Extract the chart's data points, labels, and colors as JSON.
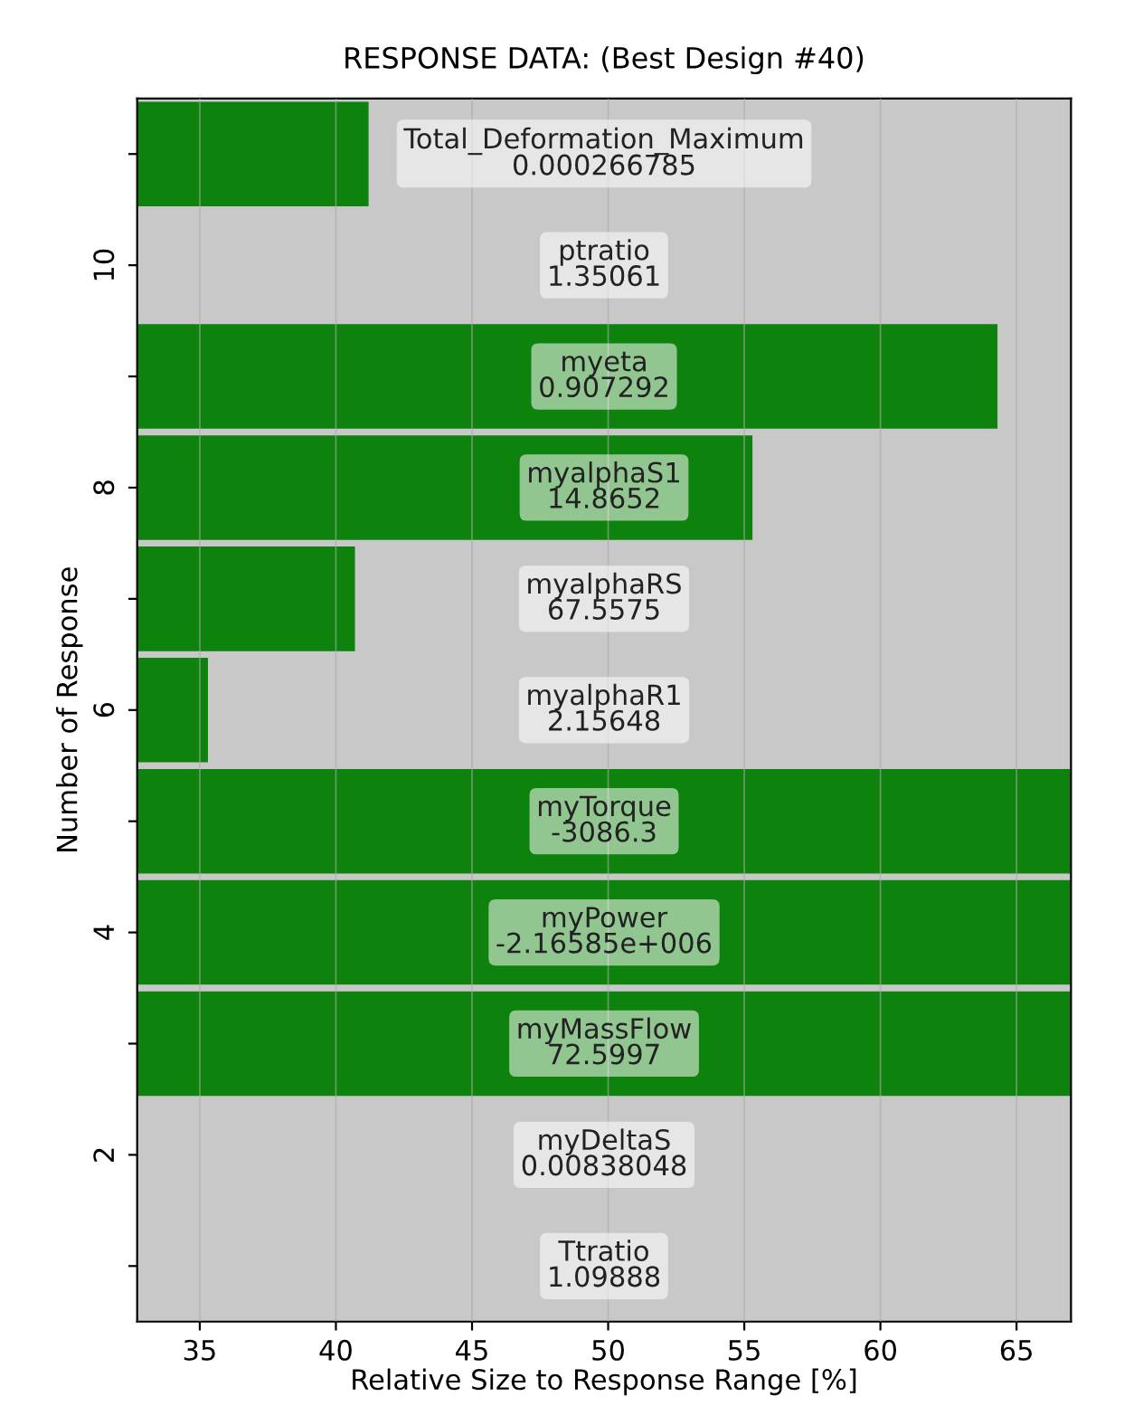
{
  "chart_data": {
    "type": "bar",
    "orientation": "horizontal",
    "title": "RESPONSE DATA: (Best Design #40)",
    "xlabel": "Relative Size to Response Range [%]",
    "ylabel": "Number of Response",
    "categories": [
      null,
      "10",
      null,
      "8",
      null,
      "6",
      null,
      "4",
      null,
      "2",
      null
    ],
    "series": [
      {
        "color": "#0d820d",
        "values": [
          41.2,
          null,
          64.3,
          55.3,
          40.7,
          35.3,
          67,
          67,
          67,
          null,
          null
        ]
      }
    ],
    "annotations": [
      "Total_Deformation_Maximum\n0.000266785",
      "ptratio\n1.35061",
      "myeta\n0.907292",
      "myalphaS1\n14.8652",
      "myalphaRS\n67.5575",
      "myalphaR1\n2.15648",
      "myTorque\n-3086.3",
      "myPower\n-2.16585e+006",
      "myMassFlow\n72.5997",
      "myDeltaS\n0.00838048",
      "Ttratio\n1.09888"
    ],
    "xlim": [
      32.7,
      67
    ],
    "xticks": [
      35,
      40,
      45,
      50,
      55,
      60,
      65
    ],
    "grid": "x"
  }
}
